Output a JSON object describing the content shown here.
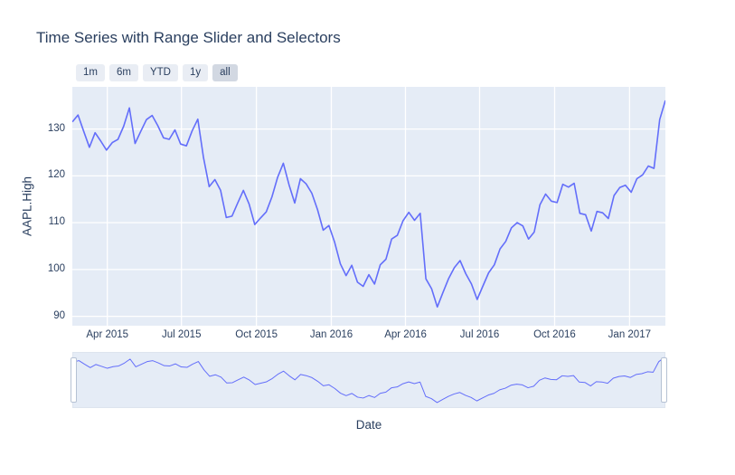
{
  "range_selector": {
    "buttons": [
      {
        "label": "1m",
        "active": false
      },
      {
        "label": "6m",
        "active": false
      },
      {
        "label": "YTD",
        "active": false
      },
      {
        "label": "1y",
        "active": false
      },
      {
        "label": "all",
        "active": true
      }
    ]
  },
  "chart_data": {
    "type": "line",
    "title": "Time Series with Range Slider and Selectors",
    "xlabel": "Date",
    "ylabel": "AAPL.High",
    "legend_position": "none",
    "grid": true,
    "colors": {
      "line": "#636efa",
      "plot_bg": "#e5ecf6",
      "grid": "#ffffff",
      "text": "#2a3f5f",
      "button_bg": "#e9edf4",
      "button_active_bg": "#d2d8e2"
    },
    "ylim": [
      88,
      139
    ],
    "yticks": [
      90,
      100,
      110,
      120,
      130
    ],
    "xticks": [
      {
        "date": "2015-04-01",
        "label": "Apr 2015"
      },
      {
        "date": "2015-07-01",
        "label": "Jul 2015"
      },
      {
        "date": "2015-10-01",
        "label": "Oct 2015"
      },
      {
        "date": "2016-01-01",
        "label": "Jan 2016"
      },
      {
        "date": "2016-04-01",
        "label": "Apr 2016"
      },
      {
        "date": "2016-07-01",
        "label": "Jul 2016"
      },
      {
        "date": "2016-10-01",
        "label": "Oct 2016"
      },
      {
        "date": "2017-01-01",
        "label": "Jan 2017"
      }
    ],
    "series": [
      {
        "name": "AAPL.High",
        "points": [
          [
            "2015-02-17",
            131.5
          ],
          [
            "2015-02-24",
            133.0
          ],
          [
            "2015-03-03",
            129.5
          ],
          [
            "2015-03-10",
            126.1
          ],
          [
            "2015-03-17",
            129.2
          ],
          [
            "2015-03-24",
            127.4
          ],
          [
            "2015-03-31",
            125.5
          ],
          [
            "2015-04-07",
            127.1
          ],
          [
            "2015-04-14",
            127.8
          ],
          [
            "2015-04-21",
            130.6
          ],
          [
            "2015-04-28",
            134.5
          ],
          [
            "2015-05-05",
            126.9
          ],
          [
            "2015-05-12",
            129.5
          ],
          [
            "2015-05-19",
            132.0
          ],
          [
            "2015-05-26",
            132.9
          ],
          [
            "2015-06-02",
            130.7
          ],
          [
            "2015-06-09",
            128.1
          ],
          [
            "2015-06-16",
            127.8
          ],
          [
            "2015-06-23",
            129.8
          ],
          [
            "2015-06-30",
            126.8
          ],
          [
            "2015-07-07",
            126.4
          ],
          [
            "2015-07-14",
            129.6
          ],
          [
            "2015-07-21",
            132.1
          ],
          [
            "2015-07-28",
            123.9
          ],
          [
            "2015-08-04",
            117.7
          ],
          [
            "2015-08-11",
            119.2
          ],
          [
            "2015-08-18",
            116.9
          ],
          [
            "2015-08-25",
            111.1
          ],
          [
            "2015-09-01",
            111.4
          ],
          [
            "2015-09-08",
            114.2
          ],
          [
            "2015-09-15",
            116.9
          ],
          [
            "2015-09-22",
            114.0
          ],
          [
            "2015-09-29",
            109.6
          ],
          [
            "2015-10-06",
            111.0
          ],
          [
            "2015-10-13",
            112.3
          ],
          [
            "2015-10-20",
            115.5
          ],
          [
            "2015-10-27",
            119.7
          ],
          [
            "2015-11-03",
            122.7
          ],
          [
            "2015-11-10",
            118.1
          ],
          [
            "2015-11-17",
            114.2
          ],
          [
            "2015-11-24",
            119.4
          ],
          [
            "2015-12-01",
            118.3
          ],
          [
            "2015-12-08",
            116.3
          ],
          [
            "2015-12-15",
            112.8
          ],
          [
            "2015-12-22",
            108.4
          ],
          [
            "2015-12-29",
            109.4
          ],
          [
            "2016-01-05",
            105.8
          ],
          [
            "2016-01-12",
            101.2
          ],
          [
            "2016-01-19",
            98.7
          ],
          [
            "2016-01-26",
            100.9
          ],
          [
            "2016-02-02",
            97.3
          ],
          [
            "2016-02-09",
            96.4
          ],
          [
            "2016-02-16",
            98.9
          ],
          [
            "2016-02-23",
            96.9
          ],
          [
            "2016-03-01",
            101.0
          ],
          [
            "2016-03-08",
            102.2
          ],
          [
            "2016-03-15",
            106.5
          ],
          [
            "2016-03-22",
            107.3
          ],
          [
            "2016-03-29",
            110.4
          ],
          [
            "2016-04-05",
            112.2
          ],
          [
            "2016-04-12",
            110.5
          ],
          [
            "2016-04-19",
            112.0
          ],
          [
            "2016-04-26",
            98.0
          ],
          [
            "2016-05-03",
            95.9
          ],
          [
            "2016-05-10",
            92.0
          ],
          [
            "2016-05-17",
            95.1
          ],
          [
            "2016-05-24",
            98.1
          ],
          [
            "2016-05-31",
            100.4
          ],
          [
            "2016-06-07",
            101.9
          ],
          [
            "2016-06-14",
            99.1
          ],
          [
            "2016-06-21",
            96.9
          ],
          [
            "2016-06-28",
            93.6
          ],
          [
            "2016-07-05",
            96.5
          ],
          [
            "2016-07-12",
            99.3
          ],
          [
            "2016-07-19",
            101.0
          ],
          [
            "2016-07-26",
            104.4
          ],
          [
            "2016-08-02",
            106.0
          ],
          [
            "2016-08-09",
            108.9
          ],
          [
            "2016-08-16",
            110.0
          ],
          [
            "2016-08-23",
            109.3
          ],
          [
            "2016-08-30",
            106.5
          ],
          [
            "2016-09-06",
            108.0
          ],
          [
            "2016-09-13",
            113.8
          ],
          [
            "2016-09-20",
            116.1
          ],
          [
            "2016-09-27",
            114.6
          ],
          [
            "2016-10-04",
            114.3
          ],
          [
            "2016-10-11",
            118.2
          ],
          [
            "2016-10-18",
            117.6
          ],
          [
            "2016-10-25",
            118.4
          ],
          [
            "2016-11-01",
            112.0
          ],
          [
            "2016-11-08",
            111.7
          ],
          [
            "2016-11-15",
            108.2
          ],
          [
            "2016-11-22",
            112.4
          ],
          [
            "2016-11-29",
            112.1
          ],
          [
            "2016-12-06",
            110.9
          ],
          [
            "2016-12-13",
            115.8
          ],
          [
            "2016-12-20",
            117.5
          ],
          [
            "2016-12-27",
            118.0
          ],
          [
            "2017-01-03",
            116.5
          ],
          [
            "2017-01-10",
            119.4
          ],
          [
            "2017-01-17",
            120.2
          ],
          [
            "2017-01-24",
            122.1
          ],
          [
            "2017-01-31",
            121.6
          ],
          [
            "2017-02-07",
            132.0
          ],
          [
            "2017-02-14",
            136.1
          ]
        ]
      }
    ]
  }
}
